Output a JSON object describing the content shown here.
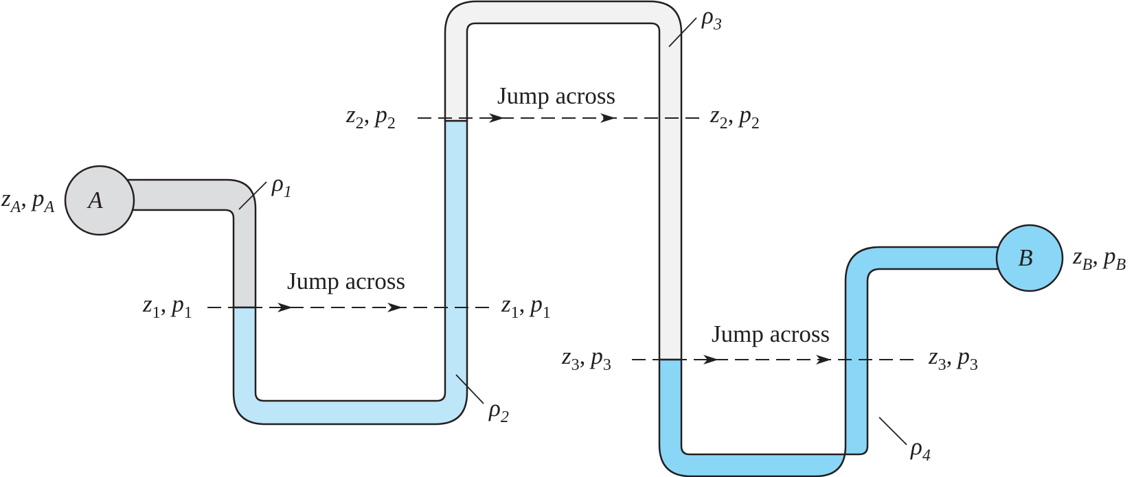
{
  "colors": {
    "fluid_1": "#dcdddf",
    "fluid_2": "#bde6f8",
    "fluid_3": "#f2f2f2",
    "fluid_4": "#8ad6f6",
    "outline": "#231f20"
  },
  "vessels": {
    "a": {
      "letter": "A",
      "z": "z",
      "z_sub": "A",
      "p": "p",
      "p_sub": "A"
    },
    "b": {
      "letter": "B",
      "z": "z",
      "z_sub": "B",
      "p": "p",
      "p_sub": "B"
    }
  },
  "fluids": [
    {
      "symbol": "ρ",
      "sub": "1"
    },
    {
      "symbol": "ρ",
      "sub": "2"
    },
    {
      "symbol": "ρ",
      "sub": "3"
    },
    {
      "symbol": "ρ",
      "sub": "4"
    }
  ],
  "levels": [
    {
      "z": "z",
      "p": "p",
      "sub": "1",
      "caption": "Jump across"
    },
    {
      "z": "z",
      "p": "p",
      "sub": "2",
      "caption": "Jump across"
    },
    {
      "z": "z",
      "p": "p",
      "sub": "3",
      "caption": "Jump across"
    }
  ],
  "separator": ","
}
